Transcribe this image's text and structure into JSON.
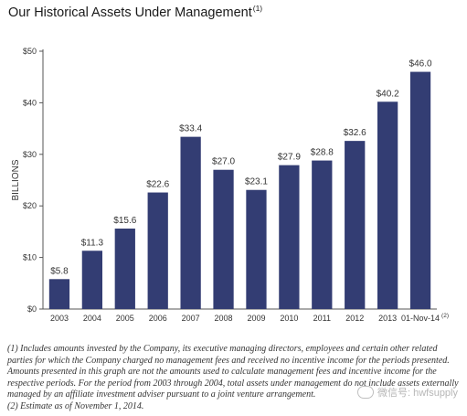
{
  "title": "Our Historical Assets Under Management",
  "title_note": "(1)",
  "chart_data": {
    "type": "bar",
    "title": "Our Historical Assets Under Management",
    "ylabel": "BILLIONS",
    "xlabel": "",
    "ylim": [
      0,
      50
    ],
    "yticks": [
      "$0",
      "$10",
      "$20",
      "$30",
      "$40",
      "$50"
    ],
    "yticks_values": [
      0,
      10,
      20,
      30,
      40,
      50
    ],
    "categories": [
      "2003",
      "2004",
      "2005",
      "2006",
      "2007",
      "2008",
      "2009",
      "2010",
      "2011",
      "2012",
      "2013",
      "01-Nov-14"
    ],
    "category_notes": [
      "",
      "",
      "",
      "",
      "",
      "",
      "",
      "",
      "",
      "",
      "",
      "(2)"
    ],
    "values": [
      5.8,
      11.3,
      15.6,
      22.6,
      33.4,
      27.0,
      23.1,
      27.9,
      28.8,
      32.6,
      40.2,
      46.0
    ],
    "data_labels": [
      "$5.8",
      "$11.3",
      "$15.6",
      "$22.6",
      "$33.4",
      "$27.0",
      "$23.1",
      "$27.9",
      "$28.8",
      "$32.6",
      "$40.2",
      "$46.0"
    ],
    "bar_color": "#333d73",
    "grid": false
  },
  "footnotes": [
    "(1) Includes amounts invested by the Company, its executive managing directors, employees and certain other related parties for which the Company charged no management fees and received no incentive income for the periods presented. Amounts presented in this graph are not the amounts used to calculate management fees and incentive income for the respective periods. For the period from 2003 through 2004, total assets under management do not include assets externally managed by an affiliate investment adviser pursuant to a joint venture arrangement.",
    "(2) Estimate as of November 1, 2014."
  ],
  "watermark": "微信号: hwfsupply"
}
